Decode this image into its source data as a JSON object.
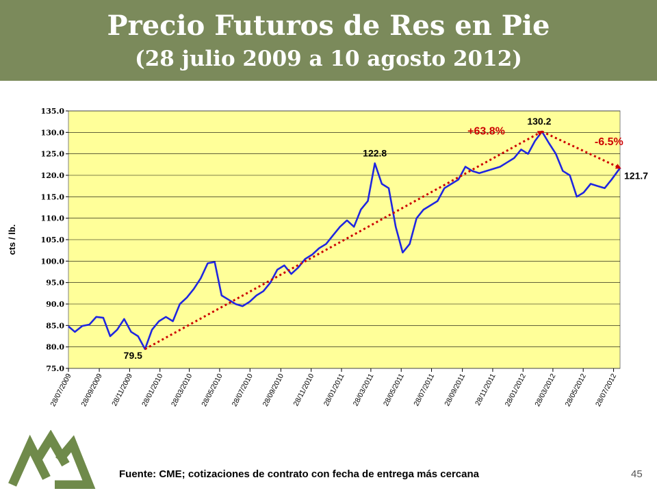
{
  "slide": {
    "title": "Precio Futuros de Res en Pie",
    "subtitle": "(28 julio 2009 a 10 agosto 2012)",
    "source": "Fuente: CME; cotizaciones de contrato con fecha de entrega más cercana",
    "page_number": "45"
  },
  "colors": {
    "header_bg": "#7b8a5b",
    "plot_bg": "#ffff99",
    "series": "#1f26e0",
    "trend": "#cc0000",
    "logo": "#6f8a4a"
  },
  "chart_data": {
    "type": "line",
    "ylabel": "cts / lb.",
    "ylim": [
      75.0,
      135.0
    ],
    "yticks": [
      "75.0",
      "80.0",
      "85.0",
      "90.0",
      "95.0",
      "100.0",
      "105.0",
      "110.0",
      "115.0",
      "120.0",
      "125.0",
      "130.0",
      "135.0"
    ],
    "xrange": [
      "2009-07-28",
      "2012-08-10"
    ],
    "xtick_labels": [
      "28/07/2009",
      "28/09/2009",
      "28/11/2009",
      "28/01/2010",
      "28/03/2010",
      "28/05/2010",
      "28/07/2010",
      "28/09/2010",
      "28/11/2010",
      "28/01/2011",
      "28/03/2011",
      "28/05/2011",
      "28/07/2011",
      "28/09/2011",
      "28/11/2011",
      "28/01/2012",
      "28/03/2012",
      "28/05/2012",
      "28/07/2012"
    ],
    "grid": true,
    "series": [
      {
        "x": [
          "2009-07-28",
          "2009-08-10",
          "2009-08-25",
          "2009-09-08",
          "2009-09-22",
          "2009-10-06",
          "2009-10-20",
          "2009-11-03",
          "2009-11-17",
          "2009-12-01",
          "2009-12-15",
          "2009-12-29",
          "2010-01-12",
          "2010-01-26",
          "2010-02-09",
          "2010-02-23",
          "2010-03-09",
          "2010-03-23",
          "2010-04-06",
          "2010-04-20",
          "2010-05-04",
          "2010-05-18",
          "2010-06-01",
          "2010-06-15",
          "2010-06-29",
          "2010-07-13",
          "2010-07-27",
          "2010-08-10",
          "2010-08-24",
          "2010-09-07",
          "2010-09-21",
          "2010-10-05",
          "2010-10-19",
          "2010-11-02",
          "2010-11-16",
          "2010-11-30",
          "2010-12-14",
          "2010-12-28",
          "2011-01-11",
          "2011-01-25",
          "2011-02-08",
          "2011-02-22",
          "2011-03-08",
          "2011-03-22",
          "2011-04-05",
          "2011-04-19",
          "2011-05-03",
          "2011-05-17",
          "2011-05-31",
          "2011-06-14",
          "2011-06-28",
          "2011-07-12",
          "2011-07-26",
          "2011-08-09",
          "2011-08-23",
          "2011-09-06",
          "2011-09-20",
          "2011-10-04",
          "2011-10-18",
          "2011-11-01",
          "2011-11-15",
          "2011-11-29",
          "2011-12-13",
          "2011-12-27",
          "2012-01-10",
          "2012-01-24",
          "2012-02-07",
          "2012-02-21",
          "2012-03-06",
          "2012-03-20",
          "2012-04-03",
          "2012-04-17",
          "2012-05-01",
          "2012-05-15",
          "2012-05-29",
          "2012-06-12",
          "2012-06-26",
          "2012-07-10",
          "2012-07-24",
          "2012-08-10"
        ],
        "y": [
          84.8,
          83.5,
          84.9,
          85.2,
          87.0,
          86.8,
          82.5,
          84.0,
          86.5,
          83.5,
          82.5,
          79.5,
          84.0,
          86.0,
          87.0,
          86.0,
          90.0,
          91.5,
          93.5,
          96.0,
          99.5,
          99.8,
          92.0,
          91.0,
          90.0,
          89.5,
          90.5,
          92.0,
          93.0,
          95.0,
          98.0,
          99.0,
          97.0,
          98.5,
          100.5,
          101.5,
          103.0,
          104.0,
          106.0,
          108.0,
          109.5,
          108.0,
          112.0,
          114.0,
          122.8,
          118.0,
          117.0,
          108.0,
          102.0,
          104.0,
          110.0,
          112.0,
          113.0,
          114.0,
          117.0,
          118.0,
          119.0,
          122.0,
          121.0,
          120.5,
          121.0,
          121.5,
          122.0,
          123.0,
          124.0,
          126.0,
          125.0,
          128.0,
          130.2,
          127.5,
          125.0,
          121.0,
          120.0,
          115.0,
          116.0,
          118.0,
          117.5,
          117.0,
          119.0,
          121.7
        ]
      }
    ],
    "annotations": [
      {
        "text": "79.5",
        "x": "2009-12-29",
        "y": 79.5
      },
      {
        "text": "122.8",
        "x": "2011-04-05",
        "y": 122.8
      },
      {
        "text": "130.2",
        "x": "2012-03-06",
        "y": 130.2
      },
      {
        "text": "121.7",
        "x": "2012-08-10",
        "y": 121.7
      },
      {
        "text": "+63.8%",
        "x": "2011-11-15",
        "y": 129.5
      },
      {
        "text": "-6.5%",
        "x": "2012-06-20",
        "y": 127.0
      }
    ],
    "trend_lines": [
      {
        "from": {
          "x": "2009-12-29",
          "y": 79.5
        },
        "to": {
          "x": "2012-03-06",
          "y": 130.2
        }
      },
      {
        "from": {
          "x": "2012-03-06",
          "y": 130.2
        },
        "to": {
          "x": "2012-08-10",
          "y": 121.7
        }
      }
    ]
  }
}
